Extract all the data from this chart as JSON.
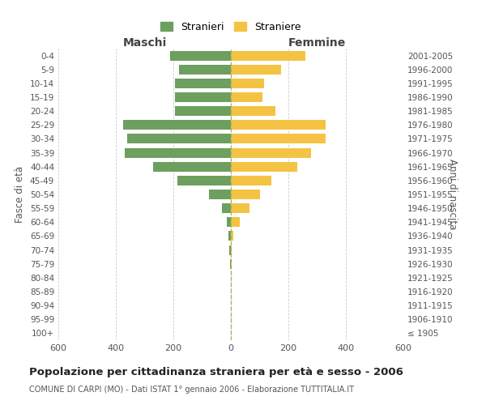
{
  "age_groups": [
    "0-4",
    "5-9",
    "10-14",
    "15-19",
    "20-24",
    "25-29",
    "30-34",
    "35-39",
    "40-44",
    "45-49",
    "50-54",
    "55-59",
    "60-64",
    "65-69",
    "70-74",
    "75-79",
    "80-84",
    "85-89",
    "90-94",
    "95-99",
    "100+"
  ],
  "birth_years": [
    "2001-2005",
    "1996-2000",
    "1991-1995",
    "1986-1990",
    "1981-1985",
    "1976-1980",
    "1971-1975",
    "1966-1970",
    "1961-1965",
    "1956-1960",
    "1951-1955",
    "1946-1950",
    "1941-1945",
    "1936-1940",
    "1931-1935",
    "1926-1930",
    "1921-1925",
    "1916-1920",
    "1911-1915",
    "1906-1910",
    "≤ 1905"
  ],
  "maschi": [
    210,
    180,
    195,
    195,
    195,
    375,
    360,
    370,
    270,
    185,
    75,
    30,
    15,
    8,
    5,
    3,
    0,
    0,
    0,
    0,
    0
  ],
  "femmine": [
    260,
    175,
    115,
    110,
    155,
    330,
    330,
    280,
    230,
    140,
    100,
    65,
    30,
    8,
    4,
    2,
    0,
    0,
    0,
    0,
    0
  ],
  "male_color": "#6d9f5e",
  "female_color": "#f5c343",
  "background_color": "#ffffff",
  "grid_color": "#cccccc",
  "title": "Popolazione per cittadinanza straniera per età e sesso - 2006",
  "subtitle": "COMUNE DI CARPI (MO) - Dati ISTAT 1° gennaio 2006 - Elaborazione TUTTITALIA.IT",
  "xlabel_left": "Maschi",
  "xlabel_right": "Femmine",
  "ylabel_left": "Fasce di età",
  "ylabel_right": "Anni di nascita",
  "legend_male": "Stranieri",
  "legend_female": "Straniere",
  "xlim": 600,
  "bar_height": 0.7
}
